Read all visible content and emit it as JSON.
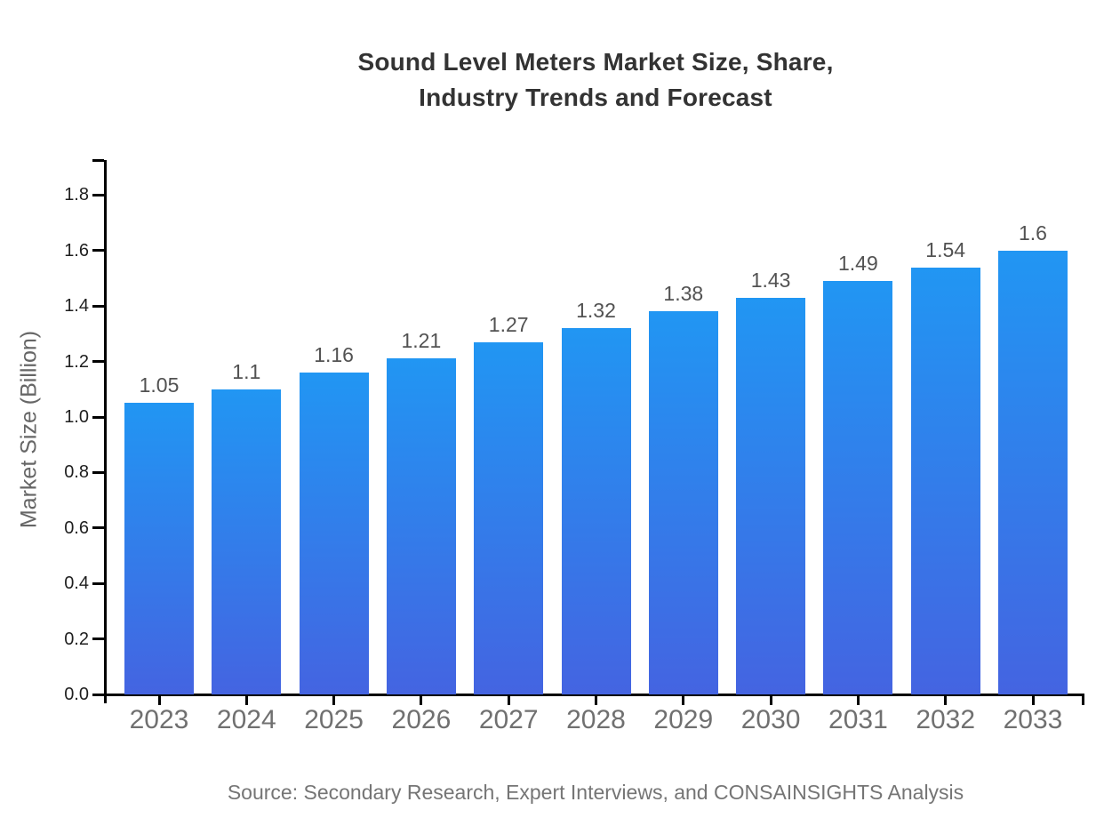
{
  "title": {
    "line1": "Sound Level Meters Market Size, Share,",
    "line2": "Industry Trends and Forecast"
  },
  "source": {
    "text": "Source: Secondary Research, Expert Interviews, and CONSAINSIGHTS Analysis"
  },
  "chart_data": {
    "type": "bar",
    "title": "Sound Level Meters Market Size, Share, Industry Trends and Forecast",
    "categories": [
      "2023",
      "2024",
      "2025",
      "2026",
      "2027",
      "2028",
      "2029",
      "2030",
      "2031",
      "2032",
      "2033"
    ],
    "values": [
      1.05,
      1.1,
      1.16,
      1.21,
      1.27,
      1.32,
      1.38,
      1.43,
      1.49,
      1.54,
      1.6
    ],
    "bar_value_labels": [
      "1.05",
      "1.1",
      "1.16",
      "1.21",
      "1.27",
      "1.32",
      "1.38",
      "1.43",
      "1.49",
      "1.54",
      "1.6"
    ],
    "xlabel": "",
    "ylabel": "Market Size (Billion)",
    "ylim": [
      0,
      1.93
    ],
    "yticks": [
      0.0,
      0.2,
      0.4,
      0.6,
      0.8,
      1.0,
      1.2,
      1.4,
      1.6,
      1.8
    ],
    "ytick_labels": [
      "0.0",
      "0.2",
      "0.4",
      "0.6",
      "0.8",
      "1.0",
      "1.2",
      "1.4",
      "1.6",
      "1.8"
    ],
    "grid": false,
    "legend": "none",
    "colors": {
      "bar_gradient_top": "#2196f3",
      "bar_gradient_bottom": "#4464e1",
      "axis": "#000000",
      "y_tick_label": "#1f1f1f",
      "x_tick_label": "#707070",
      "value_label": "#525252",
      "title": "#333333",
      "axis_title": "#666666",
      "source": "#757575"
    }
  }
}
